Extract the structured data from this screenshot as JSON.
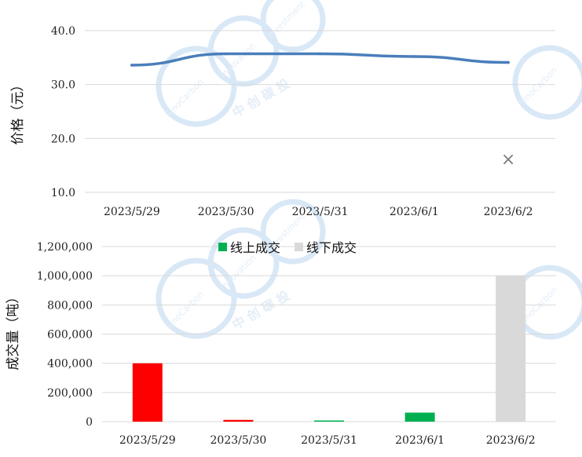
{
  "charts": [
    {
      "type": "line",
      "x": [
        "2023/5/29",
        "2023/5/30",
        "2023/5/31",
        "2023/6/1",
        "2023/6/2"
      ],
      "ylabel": "价格（元）",
      "yticks": [
        "10.0",
        "20.0",
        "30.0",
        "40.0"
      ],
      "ylim": [
        10,
        40
      ],
      "series": [
        {
          "values": [
            33.6,
            35.7,
            35.7,
            35.2,
            34.1
          ],
          "color": "#4a7ebb"
        }
      ],
      "extra_marker": {
        "x": "2023/6/2",
        "y": 16.1,
        "symbol": "×",
        "color": "#7f7f7f"
      },
      "grid": "horizontal"
    },
    {
      "type": "bar",
      "categories": [
        "2023/5/29",
        "2023/5/30",
        "2023/5/31",
        "2023/6/1",
        "2023/6/2"
      ],
      "ylabel": "成交量（吨）",
      "yticks": [
        "0",
        "200,000",
        "400,000",
        "600,000",
        "800,000",
        "1,000,000",
        "1,200,000"
      ],
      "ylim": [
        0,
        1200000
      ],
      "legend": {
        "position": "top",
        "items": [
          {
            "name": "线上成交",
            "color": "#00b050"
          },
          {
            "name": "线下成交",
            "color": "#d9d9d9"
          }
        ]
      },
      "values": [
        400000,
        12000,
        8000,
        62000,
        1000000
      ],
      "bar_colors": [
        "#ff0000",
        "#ff0000",
        "#00b050",
        "#00b050",
        "#d9d9d9"
      ],
      "grid": "horizontal"
    }
  ],
  "watermark": {
    "texts": [
      "SinoCarbon",
      "Innovation",
      "Investment",
      "中 创 碳 投"
    ],
    "color": "#d9e8f6"
  }
}
